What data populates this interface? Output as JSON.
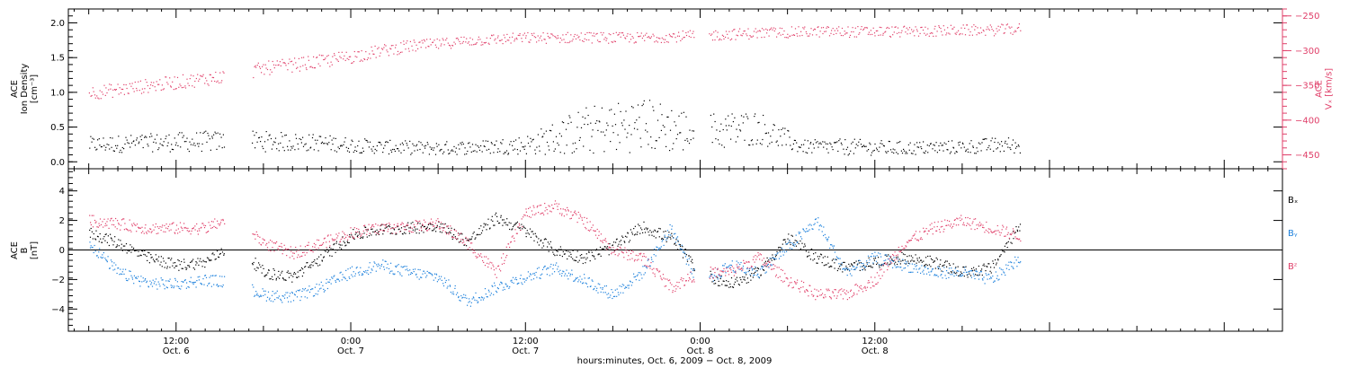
{
  "colors": {
    "ion_density": "#000000",
    "vx": "#e0406a",
    "bx": "#000000",
    "by": "#1c80dc",
    "bz": "#e0406a",
    "axis": "#000000"
  },
  "chart_data": [
    {
      "type": "scatter",
      "panel": "top",
      "ylabel_lines": [
        "ACE",
        "Ion Density",
        "[cm⁻³]"
      ],
      "y2label_lines": [
        "ACE",
        "Vₓ [km/s]"
      ],
      "ylim": [
        -0.1,
        2.2
      ],
      "y2lim": [
        -470,
        -240
      ],
      "y_ticks": [
        0.0,
        0.5,
        1.0,
        1.5,
        2.0
      ],
      "y_tick_labels": [
        "0.0",
        "0.5",
        "1.0",
        "1.5",
        "2.0"
      ],
      "y2_ticks": [
        -450,
        -400,
        -350,
        -300,
        -250
      ],
      "y2_tick_labels": [
        "−450",
        "−400",
        "−350",
        "−300",
        "−250"
      ],
      "series": [
        {
          "key": "ion_density",
          "axis": "left",
          "color_key": "ion_density",
          "x_hours": [
            6,
            10,
            14,
            18,
            22,
            26,
            30,
            33,
            36,
            40,
            44,
            48,
            52,
            55,
            58,
            62,
            66,
            69,
            70
          ],
          "values": [
            0.25,
            0.28,
            0.3,
            0.3,
            0.28,
            0.22,
            0.2,
            0.22,
            0.25,
            0.45,
            0.55,
            0.42,
            0.5,
            0.22,
            0.22,
            0.2,
            0.22,
            0.25,
            0.22
          ],
          "spread": [
            0.12,
            0.13,
            0.15,
            0.15,
            0.12,
            0.1,
            0.1,
            0.1,
            0.14,
            0.35,
            0.4,
            0.3,
            0.25,
            0.1,
            0.12,
            0.1,
            0.1,
            0.12,
            0.1
          ]
        },
        {
          "key": "vx",
          "axis": "right",
          "color_key": "vx",
          "x_hours": [
            6,
            8,
            10,
            12,
            14,
            16,
            18,
            20,
            22,
            24,
            26,
            28,
            30,
            32,
            34,
            36,
            38,
            40,
            42,
            44,
            46,
            48,
            50,
            52,
            54,
            56,
            58,
            62,
            64,
            66,
            68,
            70
          ],
          "values": [
            -360,
            -356,
            -350,
            -345,
            -340,
            -335,
            -325,
            -320,
            -315,
            -308,
            -300,
            -293,
            -290,
            -285,
            -283,
            -281,
            -281,
            -280,
            -281,
            -281,
            -279,
            -278,
            -276,
            -274,
            -273,
            -272,
            -272,
            -272,
            -271,
            -270,
            -270,
            -268
          ],
          "spread": [
            10,
            10,
            10,
            10,
            10,
            10,
            10,
            10,
            10,
            10,
            9,
            9,
            8,
            8,
            8,
            8,
            8,
            8,
            8,
            8,
            8,
            8,
            8,
            8,
            8,
            8,
            8,
            8,
            8,
            8,
            8,
            8
          ]
        }
      ],
      "gaps_hours": [
        [
          15.3,
          17.2
        ],
        [
          47.6,
          48.6
        ],
        [
          70.5,
          84.0
        ]
      ]
    },
    {
      "type": "scatter",
      "panel": "bottom",
      "ylabel_lines": [
        "ACE",
        "B",
        "[nT]"
      ],
      "ylim": [
        -5.5,
        5.5
      ],
      "y_ticks": [
        -4,
        -2,
        0,
        2,
        4
      ],
      "y_tick_labels": [
        "−4",
        "−2",
        "0",
        "2",
        "4"
      ],
      "zero_line": true,
      "legend": {
        "placement": "right",
        "entries": [
          "Bₓ",
          "Bᵧ",
          "Bᶻ"
        ]
      },
      "series": [
        {
          "key": "bx",
          "name": "Bₓ",
          "color_key": "bx",
          "x_hours": [
            6,
            8,
            10,
            12,
            14,
            16,
            18,
            20,
            22,
            24,
            26,
            28,
            30,
            32,
            34,
            36,
            38,
            40,
            42,
            44,
            46,
            48,
            50,
            52,
            54,
            56,
            58,
            60,
            62,
            64,
            66,
            68,
            70
          ],
          "values": [
            1.2,
            0.5,
            -0.5,
            -1.0,
            -0.8,
            0.5,
            -1.5,
            -1.8,
            -0.5,
            1.0,
            1.4,
            1.5,
            1.7,
            0.6,
            2.2,
            1.3,
            0.0,
            -0.5,
            0.2,
            1.6,
            0.8,
            -1.5,
            -2.3,
            -1.5,
            0.8,
            -0.5,
            -1.2,
            -0.8,
            -0.5,
            -0.8,
            -1.5,
            -1.2,
            1.8
          ]
        },
        {
          "key": "by",
          "name": "Bᵧ",
          "color_key": "by",
          "x_hours": [
            6,
            8,
            10,
            12,
            14,
            16,
            18,
            20,
            22,
            24,
            26,
            28,
            30,
            32,
            34,
            36,
            38,
            40,
            42,
            44,
            46,
            48,
            50,
            52,
            54,
            56,
            58,
            60,
            62,
            64,
            66,
            68,
            70
          ],
          "values": [
            0.5,
            -1.5,
            -2.2,
            -2.3,
            -2.0,
            -2.2,
            -3.0,
            -3.2,
            -2.5,
            -1.5,
            -1.0,
            -1.5,
            -1.8,
            -3.5,
            -2.5,
            -1.8,
            -1.2,
            -2.0,
            -3.0,
            -1.5,
            1.5,
            -2.5,
            -1.0,
            -1.5,
            0.2,
            2.0,
            -1.5,
            -0.5,
            -1.0,
            -1.5,
            -1.5,
            -2.0,
            -0.5
          ]
        },
        {
          "key": "bz",
          "name": "Bᶻ",
          "color_key": "bz",
          "x_hours": [
            6,
            8,
            10,
            12,
            14,
            16,
            18,
            20,
            22,
            24,
            26,
            28,
            30,
            32,
            34,
            36,
            38,
            40,
            42,
            44,
            46,
            48,
            50,
            52,
            54,
            56,
            58,
            60,
            62,
            64,
            66,
            68,
            70
          ],
          "values": [
            2.0,
            1.8,
            1.5,
            1.5,
            1.5,
            2.3,
            0.5,
            -0.2,
            0.5,
            1.2,
            1.5,
            1.6,
            1.8,
            0.5,
            -1.5,
            2.5,
            3.0,
            2.0,
            0.0,
            -0.5,
            -2.5,
            -1.5,
            -1.5,
            -0.5,
            -2.0,
            -3.0,
            -3.0,
            -2.0,
            0.5,
            1.5,
            2.0,
            1.5,
            1.0
          ]
        }
      ],
      "gaps_hours": [
        [
          15.3,
          17.2
        ],
        [
          47.6,
          48.6
        ],
        [
          70.5,
          84.0
        ]
      ]
    }
  ],
  "x_axis": {
    "range_hours": [
      4.6,
      88.0
    ],
    "major_ticks_hours": [
      12,
      36,
      60,
      84
    ],
    "tick_labels": [
      {
        "time": "12:00",
        "date": "Oct. 6"
      },
      {
        "time": "0:00",
        "date": "Oct. 7"
      },
      {
        "time": "12:00",
        "date": "Oct. 7"
      },
      {
        "time": "0:00",
        "date": "Oct. 8"
      },
      {
        "time": "12:00",
        "date": "Oct. 8"
      }
    ],
    "tick_label_hours": [
      12,
      24,
      36,
      48,
      60
    ],
    "minor_tick_every_hours": 1,
    "medium_tick_every_hours": 6,
    "title": "hours:minutes, Oct.  6, 2009 − Oct.  8, 2009"
  }
}
